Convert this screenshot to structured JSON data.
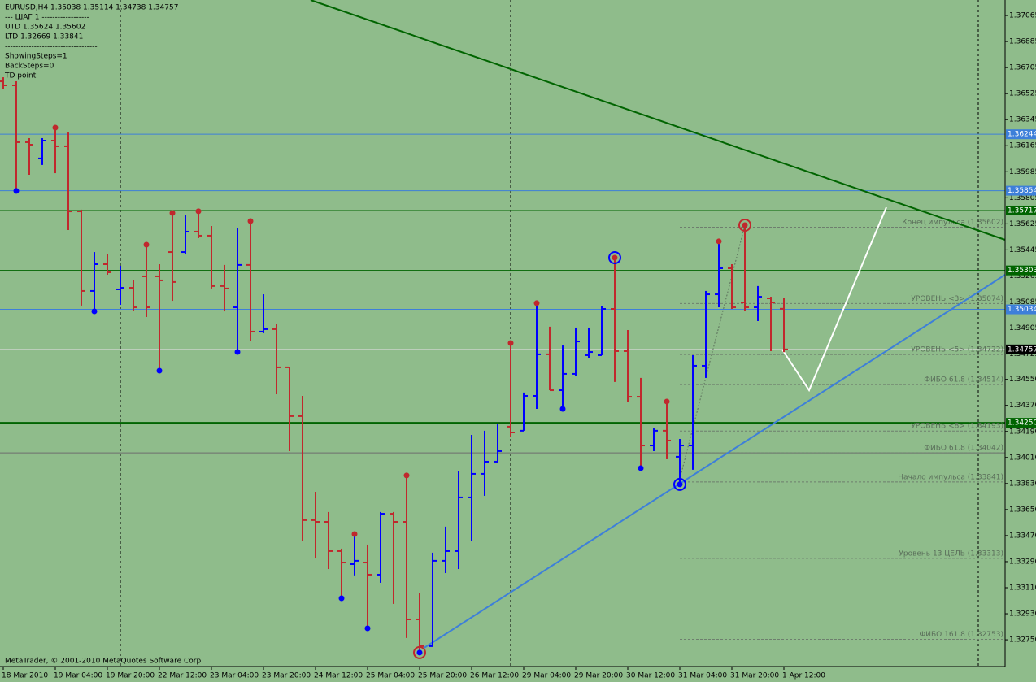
{
  "chart_data": {
    "type": "ohlc",
    "info_lines": [
      "EURUSD,H4  1.35038 1.35114 1.34738 1.34757",
      "---    ШАГ 1    ------------------",
      "UTD 1.35624  1.35602",
      "LTD  1.32669  1.33841",
      "-----------------------------------",
      "ShowingSteps=1",
      "BackSteps=0",
      "TD point"
    ],
    "footer": "MetaTrader, © 2001-2010 MetaQuotes Software Corp.",
    "categories": [
      "18 Mar 2010",
      null,
      null,
      null,
      "19 Mar 04:00",
      null,
      null,
      null,
      "19 Mar 20:00",
      null,
      null,
      null,
      "22 Mar 12:00",
      null,
      null,
      null,
      "23 Mar 04:00",
      null,
      null,
      null,
      "23 Mar 20:00",
      null,
      null,
      null,
      "24 Mar 12:00",
      null,
      null,
      null,
      "25 Mar 04:00",
      null,
      null,
      null,
      "25 Mar 20:00",
      null,
      null,
      null,
      "26 Mar 12:00",
      null,
      null,
      null,
      "29 Mar 04:00",
      null,
      null,
      null,
      "29 Mar 20:00",
      null,
      null,
      null,
      "30 Mar 12:00",
      null,
      null,
      null,
      "31 Mar 04:00",
      null,
      null,
      null,
      "31 Mar 20:00",
      null,
      null,
      null,
      "1 Apr 12:00"
    ],
    "open": [
      1.3661,
      1.36582,
      1.36189,
      1.36077,
      1.362,
      1.36161,
      1.35711,
      1.35161,
      1.35346,
      1.35172,
      1.35183,
      1.35262,
      1.35262,
      1.3543,
      1.3543,
      1.35571,
      1.35543,
      1.35195,
      1.35048,
      1.35341,
      1.3488,
      1.34897,
      1.34633,
      1.34296,
      1.33577,
      1.33565,
      1.33363,
      1.33273,
      1.33284,
      1.332,
      1.33621,
      1.33565,
      1.32891,
      1.32706,
      1.33296,
      1.33363,
      1.33734,
      1.33897,
      1.33981,
      1.34223,
      1.34195,
      1.34436,
      1.34723,
      1.34475,
      1.34588,
      1.34717,
      1.34717,
      1.35037,
      1.34745,
      1.3443,
      1.34093,
      1.34195,
      1.34015,
      1.34093,
      1.34644,
      1.35138,
      1.35318,
      1.35082,
      1.35048,
      1.3511,
      1.35038
    ],
    "high": [
      1.36638,
      1.3661,
      1.36217,
      1.36217,
      1.36273,
      1.36256,
      1.35723,
      1.3543,
      1.35414,
      1.35335,
      1.35234,
      1.35464,
      1.35346,
      1.35683,
      1.35683,
      1.35695,
      1.3561,
      1.35341,
      1.35599,
      1.35627,
      1.35138,
      1.34936,
      1.34633,
      1.34436,
      1.33773,
      1.33633,
      1.3338,
      1.33464,
      1.33408,
      1.33633,
      1.33633,
      1.33869,
      1.33071,
      1.33352,
      1.33532,
      1.33914,
      1.34166,
      1.34195,
      1.34239,
      1.34784,
      1.34459,
      1.3506,
      1.34914,
      1.34784,
      1.34908,
      1.34908,
      1.35054,
      1.35374,
      1.34891,
      1.3456,
      1.34211,
      1.3438,
      1.34138,
      1.34717,
      1.35161,
      1.35487,
      1.35346,
      1.35599,
      1.35195,
      1.35121,
      1.35114
    ],
    "low": [
      1.36554,
      1.35869,
      1.35964,
      1.36032,
      1.35975,
      1.35582,
      1.3506,
      1.35037,
      1.35273,
      1.35065,
      1.35026,
      1.34981,
      1.34627,
      1.35093,
      1.35414,
      1.35526,
      1.35178,
      1.3502,
      1.34756,
      1.34812,
      1.34869,
      1.34447,
      1.34054,
      1.33436,
      1.33312,
      1.33239,
      1.33054,
      1.33195,
      1.32846,
      1.33144,
      1.32998,
      1.32762,
      1.32678,
      1.32706,
      1.33211,
      1.33239,
      1.33436,
      1.33745,
      1.3397,
      1.3415,
      1.34195,
      1.34346,
      1.34475,
      1.34363,
      1.34571,
      1.347,
      1.34717,
      1.34532,
      1.34391,
      1.33953,
      1.34054,
      1.33998,
      1.33841,
      1.33925,
      1.3456,
      1.35048,
      1.35037,
      1.35026,
      1.34953,
      1.34745,
      1.34738
    ],
    "close": [
      1.36582,
      1.36189,
      1.36172,
      1.362,
      1.36161,
      1.35711,
      1.35161,
      1.35346,
      1.3529,
      1.35183,
      1.35048,
      1.35048,
      1.35234,
      1.35223,
      1.35571,
      1.35543,
      1.35195,
      1.35178,
      1.35341,
      1.3488,
      1.34897,
      1.34633,
      1.34296,
      1.33577,
      1.33565,
      1.33363,
      1.33284,
      1.33296,
      1.332,
      1.33621,
      1.33565,
      1.32891,
      1.32706,
      1.33296,
      1.33363,
      1.33734,
      1.33897,
      1.33981,
      1.34054,
      1.34183,
      1.34436,
      1.34723,
      1.34475,
      1.34588,
      1.34812,
      1.34739,
      1.35037,
      1.34745,
      1.3443,
      1.34093,
      1.34195,
      1.34127,
      1.34093,
      1.34644,
      1.35138,
      1.35318,
      1.35048,
      1.35048,
      1.35121,
      1.35082,
      1.34757
    ],
    "up_color": "#0000ff",
    "down_color": "#c0282d",
    "td_high_bars": [
      4,
      11,
      13,
      15,
      19,
      27,
      31,
      39,
      41,
      47,
      51,
      55,
      57
    ],
    "td_low_bars": [
      1,
      7,
      12,
      18,
      26,
      28,
      32,
      43,
      49,
      52
    ],
    "td_rings_red": [
      32,
      57
    ],
    "td_rings_blue": [
      47,
      52
    ],
    "ylim": [
      1.32565,
      1.37172
    ],
    "yticks": [
      1.37065,
      1.36885,
      1.36705,
      1.36525,
      1.36345,
      1.36165,
      1.35985,
      1.35805,
      1.35625,
      1.35445,
      1.35265,
      1.35085,
      1.34905,
      1.34725,
      {
        "value": 1.3455,
        "label": "1.34550"
      },
      {
        "value": 1.3437,
        "label": "1.34370"
      },
      {
        "value": 1.3419,
        "label": "1.34190"
      },
      {
        "value": 1.3401,
        "label": "1.34010"
      },
      {
        "value": 1.3383,
        "label": "1.33830"
      },
      {
        "value": 1.3365,
        "label": "1.33650"
      },
      {
        "value": 1.3347,
        "label": "1.33470"
      },
      {
        "value": 1.3329,
        "label": "1.33290"
      },
      {
        "value": 1.3311,
        "label": "1.33110"
      },
      {
        "value": 1.3293,
        "label": "1.32930"
      },
      {
        "value": 1.3275,
        "label": "1.32750"
      }
    ],
    "levels": [
      {
        "value": 1.36244,
        "color": "#3d7fd9",
        "tagged": true
      },
      {
        "value": 1.35854,
        "color": "#3d7fd9",
        "tagged": true
      },
      {
        "value": 1.35717,
        "color": "#006400",
        "tagged": true
      },
      {
        "value": 1.35303,
        "color": "#006400",
        "tagged": true
      },
      {
        "value": 1.35034,
        "color": "#3d7fd9",
        "tagged": true
      },
      {
        "value": 1.34757,
        "color": "#d8d8d8",
        "tag_color": "#000000",
        "tagged": true
      },
      {
        "value": 1.3425,
        "label": "1.34250",
        "color": "#006400",
        "width": 2,
        "tagged": true
      },
      {
        "value": 1.34042,
        "color": "#6e6e6e",
        "tagged": false
      }
    ],
    "annotations": [
      {
        "text": "Конец импульса    (1.35602)",
        "value": 1.35602
      },
      {
        "text": "УРОВЕНЬ <3>    (1.35074)",
        "value": 1.35074
      },
      {
        "text": "УРОВЕНЬ <5>    (1.34722)",
        "value": 1.34722
      },
      {
        "text": "ФИБО 61.8  (1.34514)",
        "value": 1.34514
      },
      {
        "text": "УРОВЕНЬ <8>    (1.34193)",
        "value": 1.34193
      },
      {
        "text": "ФИБО 61.8  (1.34042)",
        "value": 1.34042
      },
      {
        "text": "Начало импульса    (1.33841)",
        "value": 1.33841
      },
      {
        "text": "Уровень 13 ЦЕЛЬ    (1.33313)",
        "value": 1.33313
      },
      {
        "text": "ФИБО 161.8  (1.32753)",
        "value": 1.32753
      }
    ]
  }
}
